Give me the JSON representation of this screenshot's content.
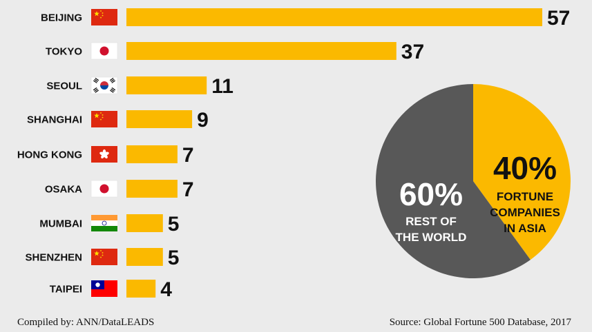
{
  "chart_data": [
    {
      "type": "bar",
      "orientation": "horizontal",
      "categories": [
        "BEIJING",
        "TOKYO",
        "SEOUL",
        "SHANGHAI",
        "HONG KONG",
        "OSAKA",
        "MUMBAI",
        "SHENZHEN",
        "TAIPEI"
      ],
      "values": [
        57,
        37,
        11,
        9,
        7,
        7,
        5,
        5,
        4
      ],
      "flags": [
        "china-flag-icon",
        "japan-flag-icon",
        "south-korea-flag-icon",
        "china-flag-icon",
        "hong-kong-flag-icon",
        "japan-flag-icon",
        "india-flag-icon",
        "china-flag-icon",
        "taiwan-flag-icon"
      ],
      "bar_color": "#fbb900",
      "xlim": [
        0,
        57
      ],
      "grid": false,
      "legend": false
    },
    {
      "type": "pie",
      "slices": [
        {
          "value": 40,
          "label_pct": "40%",
          "label_lines": [
            "FORTUNE",
            "COMPANIES",
            "IN ASIA"
          ],
          "color": "#fbb900",
          "text_color": "#111111"
        },
        {
          "value": 60,
          "label_pct": "60%",
          "label_lines": [
            "REST OF",
            "THE WORLD"
          ],
          "color": "#585858",
          "text_color": "#ffffff"
        }
      ]
    }
  ],
  "footer": {
    "left": "Compiled by: ANN/DataLEADS",
    "right": "Source: Global Fortune 500 Database, 2017"
  }
}
